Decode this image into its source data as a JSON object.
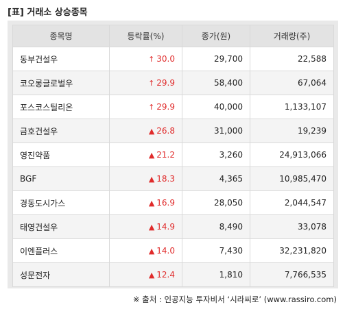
{
  "title": "[표] 거래소 상승종목",
  "table": {
    "headers": [
      "종목명",
      "등락률(%)",
      "종가(원)",
      "거래량(주)"
    ],
    "rows": [
      {
        "name": "동부건설우",
        "icon": "up-arrow-icon",
        "symbol": "↑",
        "change": "30.0",
        "close": "29,700",
        "volume": "22,588"
      },
      {
        "name": "코오롱글로벌우",
        "icon": "up-arrow-icon",
        "symbol": "↑",
        "change": "29.9",
        "close": "58,400",
        "volume": "67,064"
      },
      {
        "name": "포스코스틸리온",
        "icon": "up-arrow-icon",
        "symbol": "↑",
        "change": "29.9",
        "close": "40,000",
        "volume": "1,133,107"
      },
      {
        "name": "금호건설우",
        "icon": "up-triangle-icon",
        "symbol": "▲",
        "change": "26.8",
        "close": "31,000",
        "volume": "19,239"
      },
      {
        "name": "영진약품",
        "icon": "up-triangle-icon",
        "symbol": "▲",
        "change": "21.2",
        "close": "3,260",
        "volume": "24,913,066"
      },
      {
        "name": "BGF",
        "icon": "up-triangle-icon",
        "symbol": "▲",
        "change": "18.3",
        "close": "4,365",
        "volume": "10,985,470"
      },
      {
        "name": "경동도시가스",
        "icon": "up-triangle-icon",
        "symbol": "▲",
        "change": "16.9",
        "close": "28,050",
        "volume": "2,044,547"
      },
      {
        "name": "태영건설우",
        "icon": "up-triangle-icon",
        "symbol": "▲",
        "change": "14.9",
        "close": "8,490",
        "volume": "33,078"
      },
      {
        "name": "이엔플러스",
        "icon": "up-triangle-icon",
        "symbol": "▲",
        "change": "14.0",
        "close": "7,430",
        "volume": "32,231,820"
      },
      {
        "name": "성문전자",
        "icon": "up-triangle-icon",
        "symbol": "▲",
        "change": "12.4",
        "close": "1,810",
        "volume": "7,766,535"
      }
    ]
  },
  "source": "※ 출처 : 인공지능 투자비서 ‘시라씨로’ (www.rassiro.com)",
  "colors": {
    "up": "#e02b2b",
    "header_bg": "#e3e3e3",
    "panel_bg": "#e9e9e9"
  }
}
